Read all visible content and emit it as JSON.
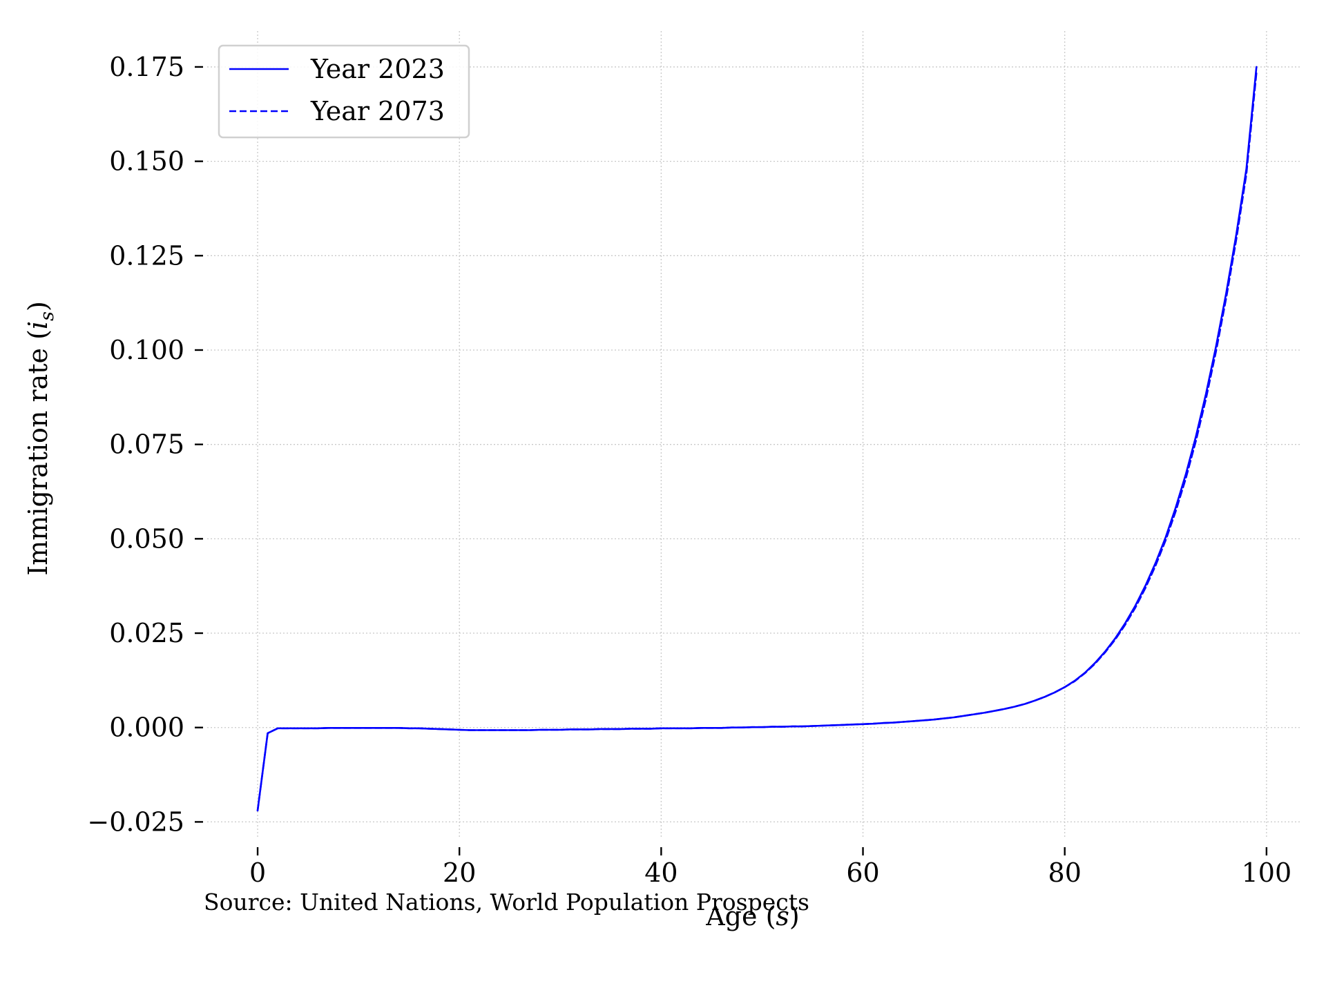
{
  "chart_data": {
    "type": "line",
    "title": "",
    "xlabel": "Age",
    "xlabel_symbol": "s",
    "ylabel": "Immigration rate",
    "ylabel_symbol": "i",
    "ylabel_subscript": "s",
    "xlim": [
      -5,
      103.5
    ],
    "ylim": [
      -0.0295,
      0.1845
    ],
    "xticks": [
      0,
      20,
      40,
      60,
      80,
      100
    ],
    "xtick_labels": [
      "0",
      "20",
      "40",
      "60",
      "80",
      "100"
    ],
    "yticks": [
      -0.025,
      0.0,
      0.025,
      0.05,
      0.075,
      0.1,
      0.125,
      0.15,
      0.175
    ],
    "ytick_labels": [
      "−0.025",
      "0.000",
      "0.025",
      "0.050",
      "0.075",
      "0.100",
      "0.125",
      "0.150",
      "0.175"
    ],
    "grid": true,
    "legend_position": "top-left",
    "source_note": "Source: United Nations, World Population Prospects",
    "colors": {
      "line": "#0000ff"
    },
    "x": [
      0,
      1,
      2,
      3,
      4,
      5,
      6,
      7,
      8,
      9,
      10,
      11,
      12,
      13,
      14,
      15,
      16,
      17,
      18,
      19,
      20,
      21,
      22,
      23,
      24,
      25,
      26,
      27,
      28,
      29,
      30,
      31,
      32,
      33,
      34,
      35,
      36,
      37,
      38,
      39,
      40,
      41,
      42,
      43,
      44,
      45,
      46,
      47,
      48,
      49,
      50,
      51,
      52,
      53,
      54,
      55,
      56,
      57,
      58,
      59,
      60,
      61,
      62,
      63,
      64,
      65,
      66,
      67,
      68,
      69,
      70,
      71,
      72,
      73,
      74,
      75,
      76,
      77,
      78,
      79,
      80,
      81,
      82,
      83,
      84,
      85,
      86,
      87,
      88,
      89,
      90,
      91,
      92,
      93,
      94,
      95,
      96,
      97,
      98,
      99
    ],
    "series": [
      {
        "name": "Year 2023",
        "style": "solid",
        "values": [
          -0.022,
          -0.0015,
          -0.0002,
          -0.0002,
          -0.0002,
          -0.0002,
          -0.0002,
          -0.0001,
          -0.0001,
          -0.0001,
          -0.0001,
          -0.0001,
          -0.0001,
          -0.0001,
          -0.0001,
          -0.0002,
          -0.0002,
          -0.0003,
          -0.0004,
          -0.0005,
          -0.0006,
          -0.0007,
          -0.0007,
          -0.0007,
          -0.0007,
          -0.0007,
          -0.0007,
          -0.0007,
          -0.0006,
          -0.0006,
          -0.0006,
          -0.0005,
          -0.0005,
          -0.0005,
          -0.0004,
          -0.0004,
          -0.0004,
          -0.0003,
          -0.0003,
          -0.0003,
          -0.0002,
          -0.0002,
          -0.0002,
          -0.0002,
          -0.0001,
          -0.0001,
          -0.0001,
          0.0,
          0.0,
          0.0001,
          0.0001,
          0.0002,
          0.0002,
          0.0003,
          0.0003,
          0.0004,
          0.0005,
          0.0006,
          0.0007,
          0.0008,
          0.0009,
          0.001,
          0.0012,
          0.0013,
          0.0015,
          0.0017,
          0.0019,
          0.0021,
          0.0024,
          0.0027,
          0.0031,
          0.0035,
          0.0039,
          0.0044,
          0.0049,
          0.0055,
          0.0062,
          0.0071,
          0.0081,
          0.0093,
          0.0107,
          0.0124,
          0.0145,
          0.0171,
          0.0201,
          0.0236,
          0.0277,
          0.0323,
          0.0376,
          0.0436,
          0.0504,
          0.0583,
          0.0671,
          0.0771,
          0.0884,
          0.101,
          0.115,
          0.1305,
          0.148,
          0.175
        ]
      },
      {
        "name": "Year 2073",
        "style": "dashed",
        "values": [
          -0.022,
          -0.0015,
          -0.0002,
          -0.0002,
          -0.0002,
          -0.0002,
          -0.0002,
          -0.0001,
          -0.0001,
          -0.0001,
          -0.0001,
          -0.0001,
          -0.0001,
          -0.0001,
          -0.0001,
          -0.0002,
          -0.0002,
          -0.0003,
          -0.0004,
          -0.0005,
          -0.0006,
          -0.0007,
          -0.0007,
          -0.0007,
          -0.0007,
          -0.0007,
          -0.0007,
          -0.0007,
          -0.0006,
          -0.0006,
          -0.0006,
          -0.0005,
          -0.0005,
          -0.0005,
          -0.0004,
          -0.0004,
          -0.0004,
          -0.0003,
          -0.0003,
          -0.0003,
          -0.0002,
          -0.0002,
          -0.0002,
          -0.0002,
          -0.0001,
          -0.0001,
          -0.0001,
          0.0,
          0.0,
          0.0001,
          0.0001,
          0.0002,
          0.0002,
          0.0003,
          0.0003,
          0.0004,
          0.0005,
          0.0006,
          0.0007,
          0.0008,
          0.0009,
          0.001,
          0.0012,
          0.0013,
          0.0015,
          0.0017,
          0.0019,
          0.0021,
          0.0024,
          0.0027,
          0.0031,
          0.0035,
          0.0039,
          0.0044,
          0.0049,
          0.0055,
          0.0062,
          0.0071,
          0.0081,
          0.0093,
          0.0107,
          0.0123,
          0.0144,
          0.0169,
          0.0199,
          0.0233,
          0.0273,
          0.0318,
          0.037,
          0.0429,
          0.0496,
          0.0573,
          0.066,
          0.0759,
          0.0871,
          0.0997,
          0.1137,
          0.1292,
          0.1466,
          0.1735
        ]
      }
    ]
  }
}
